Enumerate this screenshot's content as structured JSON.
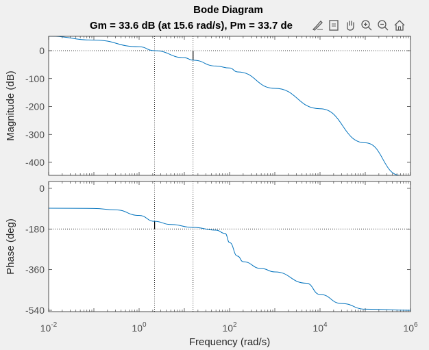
{
  "figure": {
    "title": "Bode Diagram",
    "subtitle": "Gm = 33.6 dB (at 15.6 rad/s),  Pm = 33.7 de"
  },
  "toolbar": {
    "items": [
      {
        "name": "brush-icon"
      },
      {
        "name": "data-tips-icon"
      },
      {
        "name": "pan-icon"
      },
      {
        "name": "zoom-in-icon"
      },
      {
        "name": "zoom-out-icon"
      },
      {
        "name": "home-icon"
      }
    ]
  },
  "colors": {
    "line": "#0072bd",
    "axes_bg": "#ffffff",
    "figure_bg": "#f0f0f0",
    "tick_text": "#4d4d4d"
  },
  "chart_data": [
    {
      "type": "line",
      "title": "Bode Diagram",
      "subtitle": "Gm = 33.6 dB (at 15.6 rad/s),  Pm = 33.7 de",
      "xlabel": "Frequency  (rad/s)",
      "ylabel": "Magnitude (dB)",
      "xscale": "log",
      "xlim": [
        0.01,
        1000000
      ],
      "ylim": [
        -450,
        50
      ],
      "yticks": [
        0,
        -100,
        -200,
        -300,
        -400
      ],
      "ytick_labels": [
        "0",
        "-100",
        "-200",
        "-300",
        "-400"
      ],
      "grid": false,
      "reference_lines": {
        "horizontal_dotted_y": 0,
        "vertical_dotted_x": [
          2.2,
          15.6
        ]
      },
      "margin_marker": {
        "x": 15.6,
        "from": -33.6,
        "to": 0
      },
      "series": [
        {
          "name": "Magnitude",
          "x": [
            0.01,
            0.1,
            1,
            2.2,
            10,
            15.6,
            50,
            100,
            150,
            1000,
            10000,
            100000,
            600000
          ],
          "y": [
            52,
            38,
            14,
            0,
            -25,
            -34,
            -55,
            -62,
            -76,
            -135,
            -208,
            -330,
            -447
          ]
        }
      ]
    },
    {
      "type": "line",
      "xlabel": "Frequency  (rad/s)",
      "ylabel": "Phase (deg)",
      "xscale": "log",
      "xlim": [
        0.01,
        1000000
      ],
      "ylim": [
        -540,
        0
      ],
      "yticks": [
        0,
        -180,
        -360,
        -540
      ],
      "ytick_labels": [
        "0",
        "-180",
        "-360",
        "-540"
      ],
      "xticks": [
        0.01,
        1,
        100,
        10000,
        1000000
      ],
      "xtick_labels": [
        [
          "10",
          "-2"
        ],
        [
          "10",
          "0"
        ],
        [
          "10",
          "2"
        ],
        [
          "10",
          "4"
        ],
        [
          "10",
          "6"
        ]
      ],
      "grid": false,
      "reference_lines": {
        "horizontal_dotted_y": -180,
        "vertical_dotted_x": [
          2.2,
          15.6
        ]
      },
      "margin_marker": {
        "x": 2.2,
        "from": -180,
        "to": -146
      },
      "series": [
        {
          "name": "Phase",
          "x": [
            0.01,
            0.1,
            0.3,
            1,
            2.2,
            5,
            15.6,
            50,
            80,
            100,
            150,
            200,
            500,
            1000,
            5000,
            10000,
            30000,
            100000,
            1000000
          ],
          "y": [
            -88,
            -89,
            -95,
            -120,
            -146,
            -160,
            -173,
            -185,
            -200,
            -240,
            -300,
            -325,
            -355,
            -370,
            -420,
            -470,
            -510,
            -535,
            -540
          ]
        }
      ]
    }
  ]
}
